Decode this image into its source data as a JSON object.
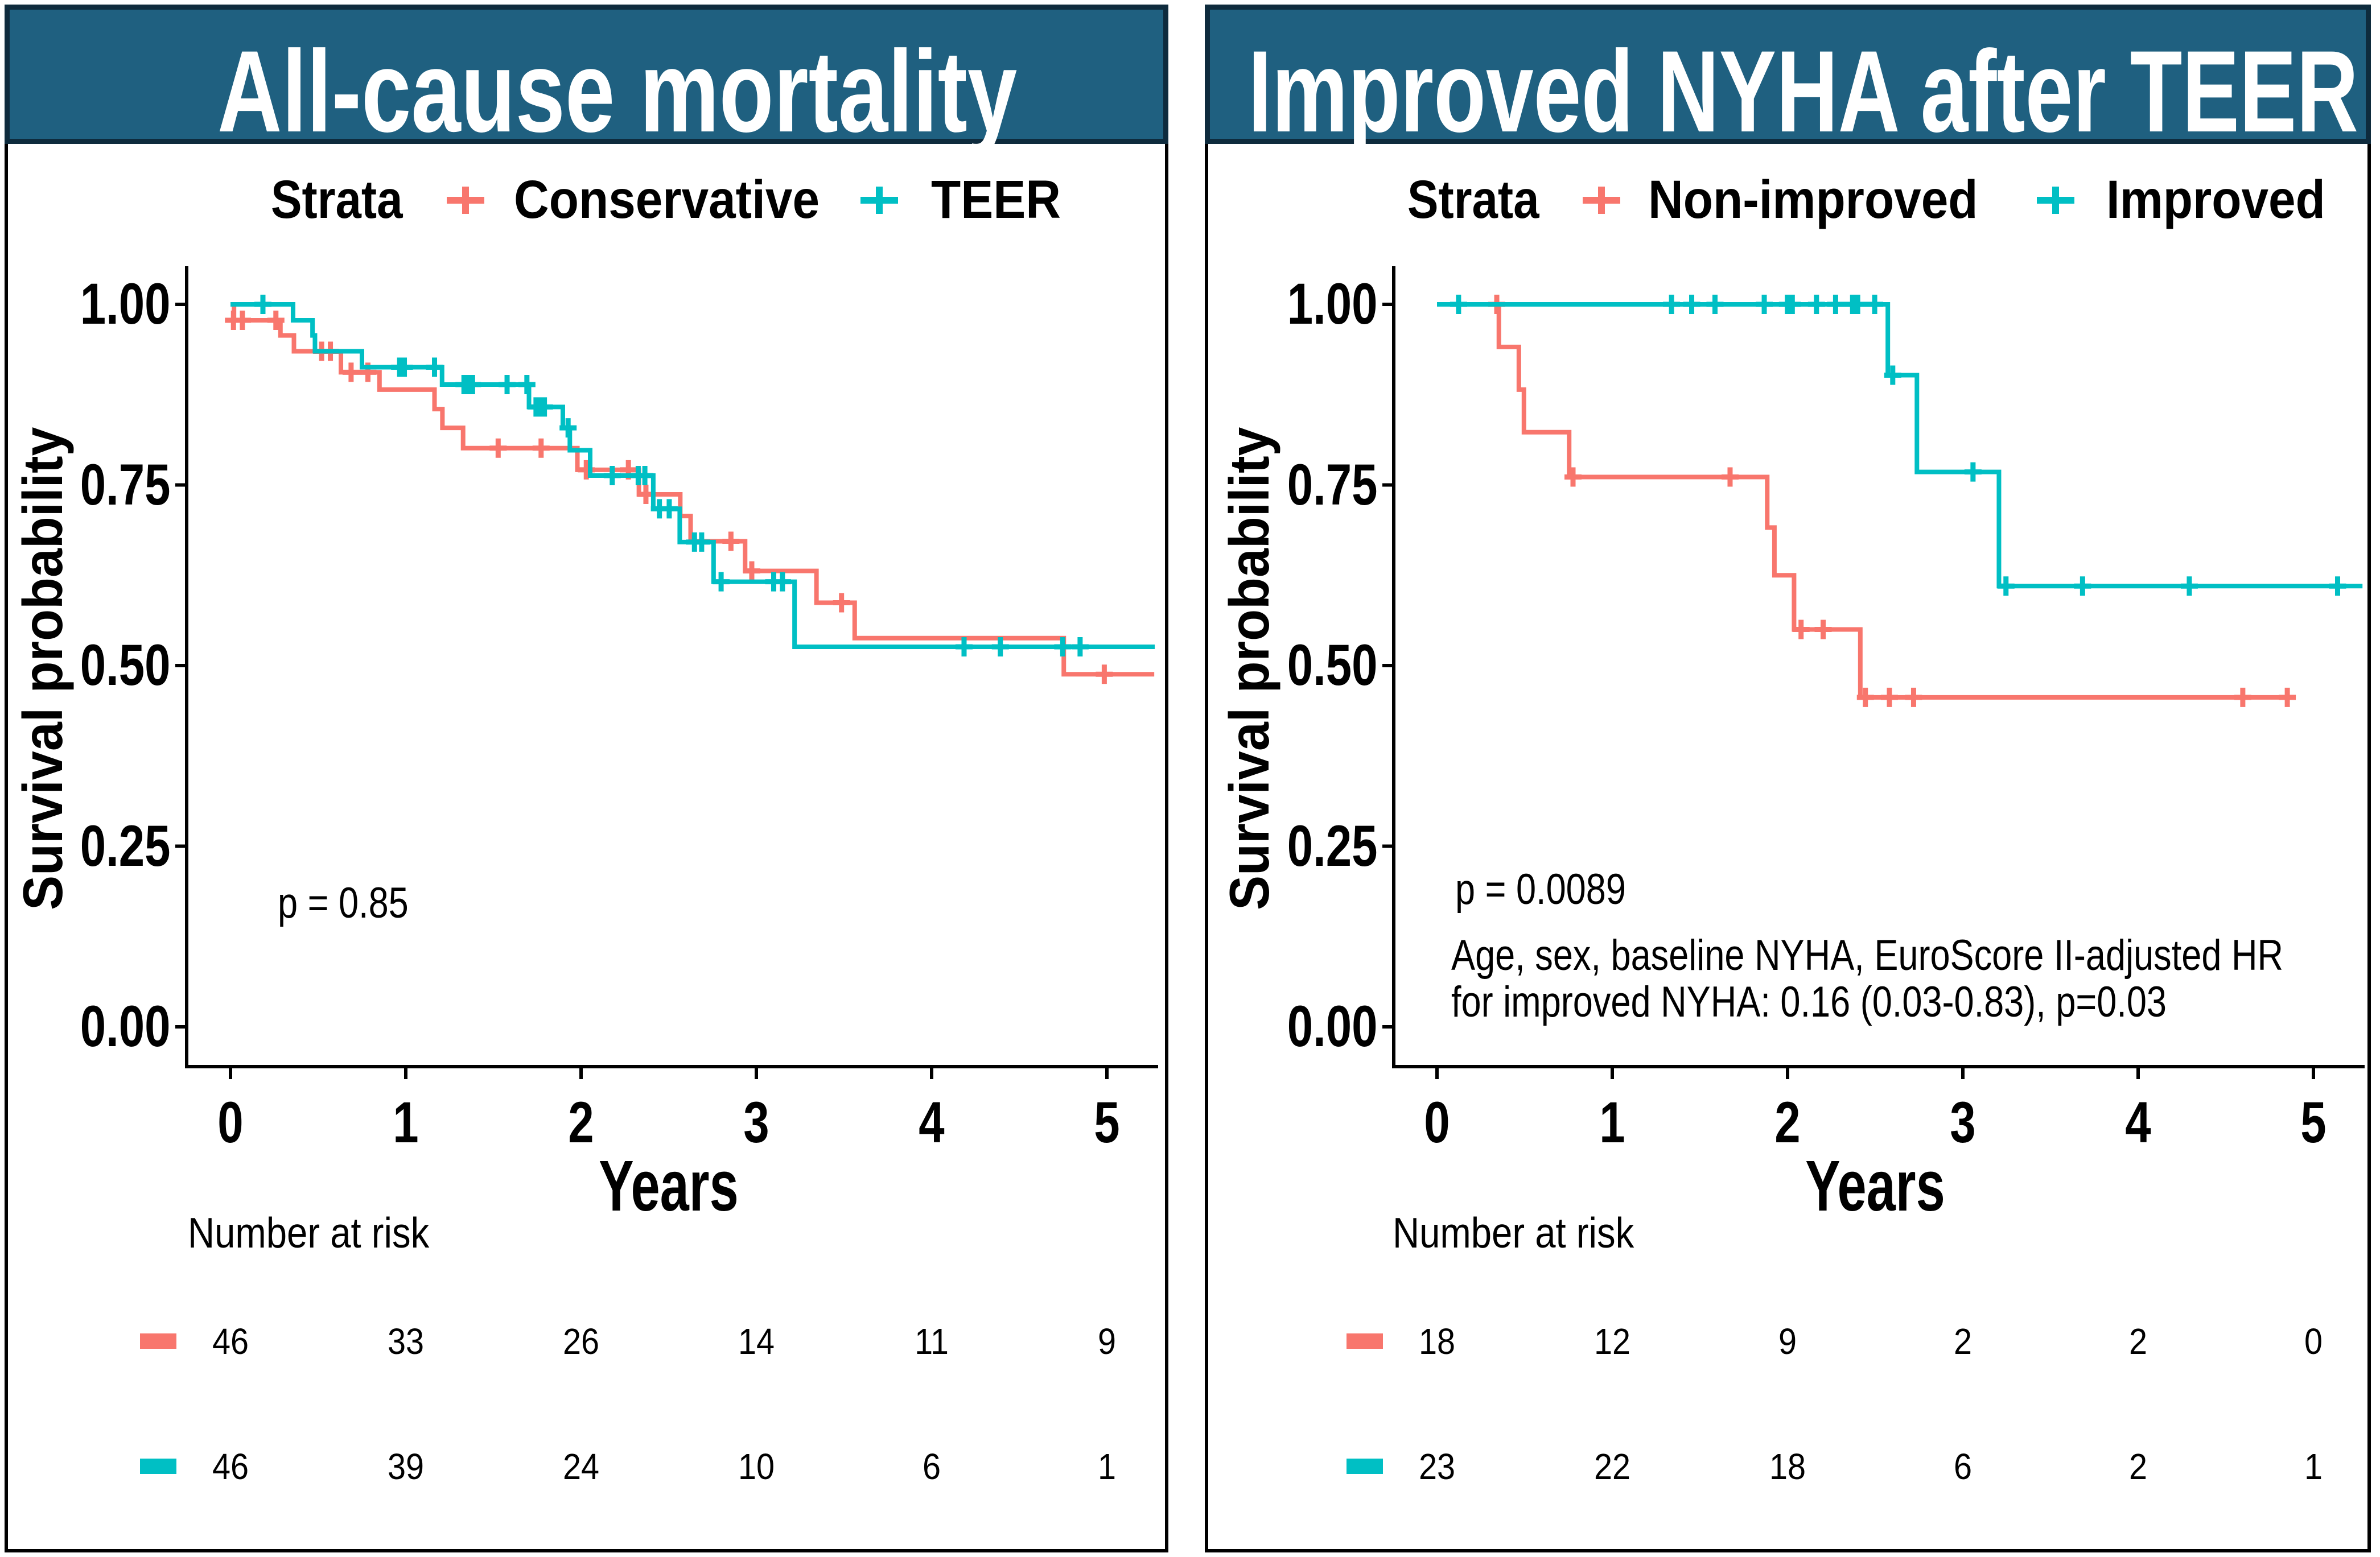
{
  "figure": {
    "panels": [
      {
        "title": "All-cause mortality",
        "legend": {
          "title": "Strata",
          "items": [
            {
              "label": "Conservative",
              "color": "#F8766D"
            },
            {
              "label": "TEER",
              "color": "#00BFC4"
            }
          ]
        },
        "y_axis": {
          "label": "Survival probability",
          "tick_labels": [
            "1.00",
            "0.75",
            "0.50",
            "0.25",
            "0.00"
          ]
        },
        "x_axis": {
          "label": "Years",
          "tick_labels": [
            "0",
            "1",
            "2",
            "3",
            "4",
            "5"
          ]
        },
        "p_value": "p = 0.85",
        "annotation_lines": [],
        "risk_table": {
          "title": "Number at risk",
          "rows": [
            {
              "group": "Conservative",
              "color": "#F8766D",
              "counts": [
                "46",
                "33",
                "26",
                "14",
                "11",
                "9"
              ]
            },
            {
              "group": "TEER",
              "color": "#00BFC4",
              "counts": [
                "46",
                "39",
                "24",
                "10",
                "6",
                "1"
              ]
            }
          ]
        }
      },
      {
        "title": "Improved NYHA after TEER",
        "legend": {
          "title": "Strata",
          "items": [
            {
              "label": "Non-improved",
              "color": "#F8766D"
            },
            {
              "label": "Improved",
              "color": "#00BFC4"
            }
          ]
        },
        "y_axis": {
          "label": "Survival probability",
          "tick_labels": [
            "1.00",
            "0.75",
            "0.50",
            "0.25",
            "0.00"
          ]
        },
        "x_axis": {
          "label": "Years",
          "tick_labels": [
            "0",
            "1",
            "2",
            "3",
            "4",
            "5"
          ]
        },
        "p_value": "p = 0.0089",
        "annotation_lines": [
          "Age, sex, baseline NYHA, EuroScore II-adjusted HR",
          "for improved NYHA: 0.16 (0.03-0.83), p=0.03"
        ],
        "risk_table": {
          "title": "Number at risk",
          "rows": [
            {
              "group": "Non-improved",
              "color": "#F8766D",
              "counts": [
                "18",
                "12",
                "9",
                "2",
                "2",
                "0"
              ]
            },
            {
              "group": "Improved",
              "color": "#00BFC4",
              "counts": [
                "23",
                "22",
                "18",
                "6",
                "2",
                "1"
              ]
            }
          ]
        }
      }
    ],
    "colors": {
      "title_bar": "#1f6080",
      "title_bar_border": "#0e2b3d",
      "panel_border": "#000000",
      "strata_red": "#F8766D",
      "strata_teal": "#00BFC4"
    }
  },
  "chart_data": [
    {
      "type": "line",
      "subtype": "kaplan_meier_step",
      "title": "All-cause mortality",
      "xlabel": "Years",
      "ylabel": "Survival probability",
      "xlim": [
        0,
        5.3
      ],
      "ylim": [
        0,
        1.0
      ],
      "x_ticks": [
        0,
        1,
        2,
        3,
        4,
        5
      ],
      "y_ticks": [
        0.0,
        0.25,
        0.5,
        0.75,
        1.0
      ],
      "grid": false,
      "legend_position": "top",
      "p_value": "p = 0.85",
      "series": [
        {
          "name": "Conservative",
          "color": "#F8766D",
          "steps": [
            [
              0,
              1.0
            ],
            [
              0.02,
              0.978
            ],
            [
              0.285,
              0.957
            ],
            [
              0.362,
              0.935
            ],
            [
              0.63,
              0.906
            ],
            [
              0.85,
              0.882
            ],
            [
              1.164,
              0.855
            ],
            [
              1.209,
              0.829
            ],
            [
              1.327,
              0.801
            ],
            [
              1.979,
              0.771
            ],
            [
              2.33,
              0.737
            ],
            [
              2.566,
              0.707
            ],
            [
              2.625,
              0.672
            ],
            [
              2.936,
              0.631
            ],
            [
              3.343,
              0.587
            ],
            [
              3.561,
              0.538
            ],
            [
              4.754,
              0.488
            ]
          ],
          "end_time": 5.27,
          "censors": [
            [
              0.017,
              0.978
            ],
            [
              0.068,
              0.978
            ],
            [
              0.259,
              0.978
            ],
            [
              0.52,
              0.935
            ],
            [
              0.57,
              0.935
            ],
            [
              0.688,
              0.906
            ],
            [
              0.784,
              0.906
            ],
            [
              1.527,
              0.801
            ],
            [
              1.772,
              0.801
            ],
            [
              2.03,
              0.771
            ],
            [
              2.27,
              0.771
            ],
            [
              2.37,
              0.737
            ],
            [
              2.855,
              0.672
            ],
            [
              2.974,
              0.631
            ],
            [
              3.486,
              0.587
            ],
            [
              4.985,
              0.488
            ]
          ]
        },
        {
          "name": "TEER",
          "color": "#00BFC4",
          "steps": [
            [
              0,
              1.0
            ],
            [
              0.357,
              0.978
            ],
            [
              0.468,
              0.957
            ],
            [
              0.482,
              0.935
            ],
            [
              0.75,
              0.913
            ],
            [
              1.207,
              0.889
            ],
            [
              1.703,
              0.858
            ],
            [
              1.896,
              0.829
            ],
            [
              1.936,
              0.798
            ],
            [
              2.052,
              0.763
            ],
            [
              2.412,
              0.717
            ],
            [
              2.563,
              0.671
            ],
            [
              2.756,
              0.616
            ],
            [
              3.218,
              0.526
            ]
          ],
          "end_time": 5.273,
          "censors": [
            [
              0.185,
              1.0
            ],
            [
              0.965,
              0.913
            ],
            [
              0.992,
              0.913
            ],
            [
              1.164,
              0.913
            ],
            [
              1.332,
              0.889
            ],
            [
              1.361,
              0.889
            ],
            [
              1.381,
              0.889
            ],
            [
              1.578,
              0.889
            ],
            [
              1.691,
              0.889
            ],
            [
              1.743,
              0.858
            ],
            [
              1.769,
              0.858
            ],
            [
              1.791,
              0.858
            ],
            [
              1.926,
              0.829
            ],
            [
              2.178,
              0.763
            ],
            [
              2.326,
              0.763
            ],
            [
              2.364,
              0.763
            ],
            [
              2.447,
              0.717
            ],
            [
              2.503,
              0.717
            ],
            [
              2.647,
              0.671
            ],
            [
              2.688,
              0.671
            ],
            [
              2.799,
              0.616
            ],
            [
              3.099,
              0.616
            ],
            [
              3.149,
              0.616
            ],
            [
              4.185,
              0.526
            ],
            [
              4.392,
              0.526
            ],
            [
              4.748,
              0.526
            ],
            [
              4.847,
              0.526
            ]
          ]
        }
      ],
      "number_at_risk": {
        "times": [
          0,
          1,
          2,
          3,
          4,
          5
        ],
        "Conservative": [
          46,
          33,
          26,
          14,
          11,
          9
        ],
        "TEER": [
          46,
          39,
          24,
          10,
          6,
          1
        ]
      }
    },
    {
      "type": "line",
      "subtype": "kaplan_meier_step",
      "title": "Improved NYHA after TEER",
      "xlabel": "Years",
      "ylabel": "Survival probability",
      "xlim": [
        0,
        5.3
      ],
      "ylim": [
        0,
        1.0
      ],
      "x_ticks": [
        0,
        1,
        2,
        3,
        4,
        5
      ],
      "y_ticks": [
        0.0,
        0.25,
        0.5,
        0.75,
        1.0
      ],
      "grid": false,
      "legend_position": "top",
      "p_value": "p = 0.0089",
      "annotation": "Age, sex, baseline NYHA, EuroScore II-adjusted HR for improved NYHA: 0.16 (0.03-0.83), p=0.03",
      "series": [
        {
          "name": "Non-improved",
          "color": "#F8766D",
          "steps": [
            [
              0,
              1.0
            ],
            [
              0.353,
              0.941
            ],
            [
              0.467,
              0.882
            ],
            [
              0.496,
              0.823
            ],
            [
              0.754,
              0.761
            ],
            [
              1.884,
              0.691
            ],
            [
              1.925,
              0.625
            ],
            [
              2.037,
              0.55
            ],
            [
              2.415,
              0.456
            ]
          ],
          "end_time": 4.87,
          "censors": [
            [
              0.341,
              1.0
            ],
            [
              0.776,
              0.761
            ],
            [
              1.672,
              0.761
            ],
            [
              2.077,
              0.55
            ],
            [
              2.203,
              0.55
            ],
            [
              2.444,
              0.456
            ],
            [
              2.581,
              0.456
            ],
            [
              2.719,
              0.456
            ],
            [
              4.597,
              0.456
            ],
            [
              4.851,
              0.456
            ]
          ]
        },
        {
          "name": "Improved",
          "color": "#00BFC4",
          "steps": [
            [
              0,
              1.0
            ],
            [
              2.572,
              0.902
            ],
            [
              2.738,
              0.768
            ],
            [
              3.206,
              0.61
            ]
          ],
          "end_time": 5.28,
          "censors": [
            [
              0.123,
              1.0
            ],
            [
              1.338,
              1.0
            ],
            [
              1.453,
              1.0
            ],
            [
              1.586,
              1.0
            ],
            [
              1.867,
              1.0
            ],
            [
              1.999,
              1.0
            ],
            [
              2.027,
              1.0
            ],
            [
              2.165,
              1.0
            ],
            [
              2.274,
              1.0
            ],
            [
              2.371,
              1.0
            ],
            [
              2.4,
              1.0
            ],
            [
              2.497,
              1.0
            ],
            [
              2.6,
              0.902
            ],
            [
              3.058,
              0.768
            ],
            [
              3.246,
              0.61
            ],
            [
              3.683,
              0.61
            ],
            [
              4.292,
              0.61
            ],
            [
              5.138,
              0.61
            ]
          ]
        }
      ],
      "number_at_risk": {
        "times": [
          0,
          1,
          2,
          3,
          4,
          5
        ],
        "Non-improved": [
          18,
          12,
          9,
          2,
          2,
          0
        ],
        "Improved": [
          23,
          22,
          18,
          6,
          2,
          1
        ]
      }
    }
  ]
}
